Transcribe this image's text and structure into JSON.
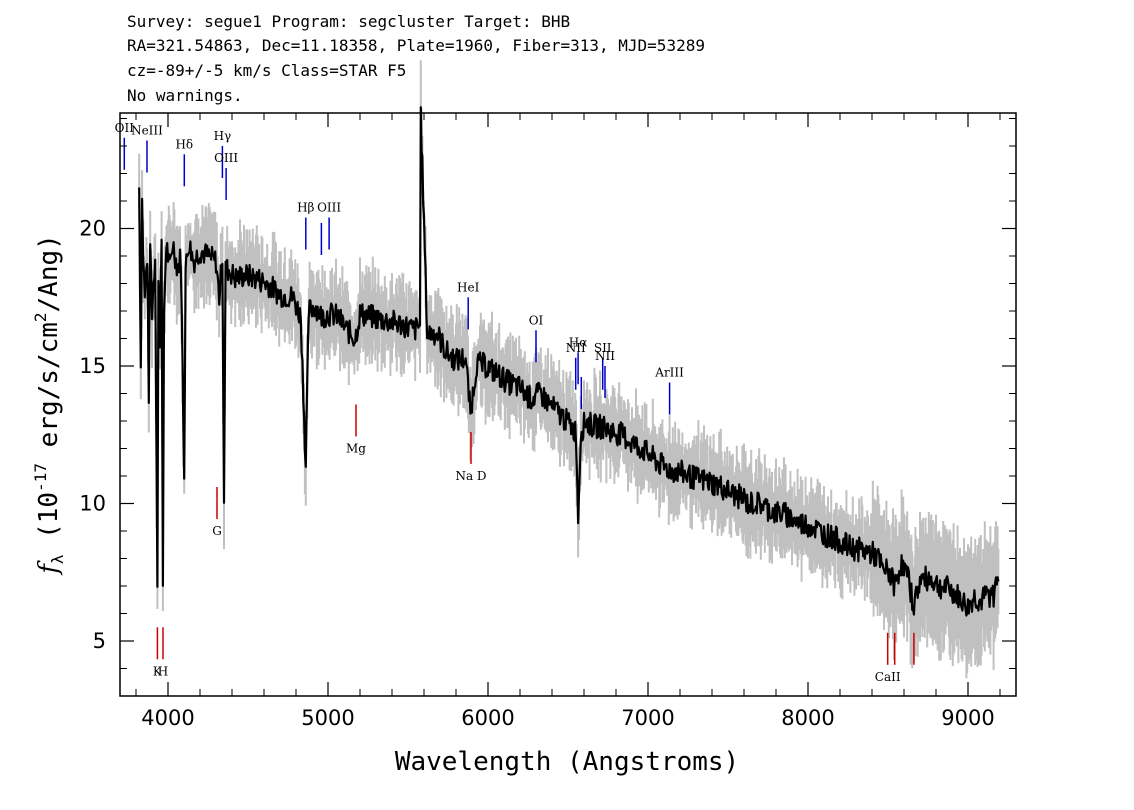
{
  "header": {
    "line1": "Survey: segue1 Program: segcluster Target: BHB",
    "line2": "RA=321.54863, Dec=11.18358, Plate=1960, Fiber=313, MJD=53289",
    "line3": "cz=-89+/-5 km/s Class=STAR F5",
    "line4": "No warnings."
  },
  "colors": {
    "emission": "#0000cc",
    "absorption": "#cc0000",
    "error": "#c0c0c0",
    "flux": "#000000"
  },
  "chart_data": {
    "type": "line",
    "xlabel": "Wavelength (Angstroms)",
    "ylabel": "f_λ (10^-17 erg/s/cm^2/Ang)",
    "xlim": [
      3700,
      9300
    ],
    "ylim": [
      3,
      24.2
    ],
    "xticks": [
      4000,
      5000,
      6000,
      7000,
      8000,
      9000
    ],
    "yticks": [
      5,
      10,
      15,
      20
    ],
    "xtick_labels": [
      "4000",
      "5000",
      "6000",
      "7000",
      "8000",
      "9000"
    ],
    "ytick_labels": [
      "5",
      "10",
      "15",
      "20"
    ],
    "series": [
      {
        "role": "flux",
        "x": [
          3820,
          3830,
          3838,
          3845,
          3855,
          3870,
          3880,
          3889,
          3900,
          3920,
          3934,
          3940,
          3950,
          3960,
          3968,
          3975,
          3990,
          4010,
          4030,
          4060,
          4080,
          4101,
          4110,
          4130,
          4160,
          4200,
          4250,
          4300,
          4320,
          4340,
          4350,
          4360,
          4380,
          4420,
          4480,
          4550,
          4620,
          4700,
          4780,
          4830,
          4861,
          4880,
          4920,
          4960,
          5000,
          5060,
          5120,
          5170,
          5200,
          5260,
          5330,
          5400,
          5470,
          5540,
          5575,
          5580,
          5620,
          5680,
          5740,
          5800,
          5860,
          5890,
          5930,
          5990,
          6060,
          6130,
          6200,
          6270,
          6330,
          6400,
          6460,
          6520,
          6550,
          6563,
          6580,
          6610,
          6660,
          6720,
          6780,
          6840,
          6900,
          6960,
          7020,
          7080,
          7150,
          7220,
          7300,
          7380,
          7460,
          7540,
          7600,
          7620,
          7700,
          7780,
          7860,
          7940,
          8020,
          8100,
          8180,
          8260,
          8340,
          8400,
          8440,
          8470,
          8500,
          8542,
          8580,
          8620,
          8662,
          8700,
          8760,
          8820,
          8880,
          8940,
          9000,
          9040,
          9080,
          9120,
          9160,
          9190
        ],
        "y": [
          21.5,
          15,
          21,
          19,
          17.5,
          19,
          14,
          19.5,
          17,
          19,
          7,
          18,
          16,
          20,
          6.6,
          17,
          19.5,
          18.5,
          19.5,
          18.5,
          19,
          11.2,
          18.5,
          19.5,
          18.8,
          19.2,
          19,
          18.8,
          17.5,
          19,
          10.2,
          18.5,
          18.5,
          18.2,
          18.3,
          18.2,
          18,
          17.6,
          17.5,
          16.8,
          11.4,
          17,
          17.2,
          16.8,
          16.9,
          16.8,
          16.3,
          16,
          16.9,
          16.8,
          16.7,
          16.6,
          16.5,
          16.3,
          16.5,
          24.2,
          16.2,
          16.2,
          15.5,
          15.2,
          15.3,
          13.3,
          15.1,
          15,
          14.7,
          14.4,
          14.2,
          13.8,
          14,
          13.5,
          13.2,
          12.8,
          12.6,
          9.5,
          12.6,
          13,
          12.8,
          12.8,
          12.6,
          12.5,
          12.2,
          12,
          11.7,
          11.4,
          11.2,
          11.1,
          10.9,
          10.8,
          10.6,
          10.3,
          10.2,
          10,
          10,
          9.7,
          9.6,
          9.3,
          9.2,
          8.9,
          8.7,
          8.4,
          8.3,
          8.2,
          8,
          7.5,
          7.6,
          7,
          7.8,
          7.4,
          6.3,
          7.2,
          7.3,
          7,
          6.9,
          6.6,
          6.2,
          6.6,
          6.4,
          6.7,
          6.6,
          7.6
        ]
      }
    ],
    "lines": [
      {
        "label": "OII",
        "wave": 3727,
        "kind": "emission",
        "level": 23.3
      },
      {
        "label": "NeIII",
        "wave": 3869,
        "kind": "emission",
        "level": 23.2
      },
      {
        "label": "Hδ",
        "wave": 4102,
        "kind": "emission",
        "level": 22.7
      },
      {
        "label": "Hγ",
        "wave": 4340,
        "kind": "emission",
        "level": 23.0
      },
      {
        "label": "OIII",
        "wave": 4363,
        "kind": "emission",
        "level": 22.2
      },
      {
        "label": "Hβ",
        "wave": 4861,
        "kind": "emission",
        "level": 20.4
      },
      {
        "label": "",
        "wave": 4959,
        "kind": "emission",
        "level": 20.2
      },
      {
        "label": "OIII",
        "wave": 5007,
        "kind": "emission",
        "level": 20.4
      },
      {
        "label": "HeI",
        "wave": 5876,
        "kind": "emission",
        "level": 17.5
      },
      {
        "label": "OI",
        "wave": 6300,
        "kind": "emission",
        "level": 16.3
      },
      {
        "label": "NII",
        "wave": 6548,
        "kind": "emission",
        "level": 15.3
      },
      {
        "label": "Hα",
        "wave": 6563,
        "kind": "emission",
        "level": 15.5
      },
      {
        "label": "",
        "wave": 6583,
        "kind": "emission",
        "level": 14.6
      },
      {
        "label": "SII",
        "wave": 6717,
        "kind": "emission",
        "level": 15.3
      },
      {
        "label": "NII",
        "wave": 6731,
        "kind": "emission",
        "level": 15.0
      },
      {
        "label": "ArIII",
        "wave": 7135,
        "kind": "emission",
        "level": 14.4
      },
      {
        "label": "Mg",
        "wave": 5175,
        "kind": "absorption",
        "level": 13.6
      },
      {
        "label": "Na D",
        "wave": 5894,
        "kind": "absorption",
        "level": 12.6
      },
      {
        "label": "G",
        "wave": 4306,
        "kind": "absorption",
        "level": 10.6
      },
      {
        "label": "K",
        "wave": 3934,
        "kind": "absorption",
        "level": 5.5
      },
      {
        "label": "H",
        "wave": 3969,
        "kind": "absorption",
        "level": 5.5
      },
      {
        "label": "CaII",
        "wave": 8498,
        "kind": "absorption",
        "level": 5.3
      },
      {
        "label": "",
        "wave": 8542,
        "kind": "absorption",
        "level": 5.3
      },
      {
        "label": "",
        "wave": 8662,
        "kind": "absorption",
        "level": 5.3
      }
    ]
  }
}
